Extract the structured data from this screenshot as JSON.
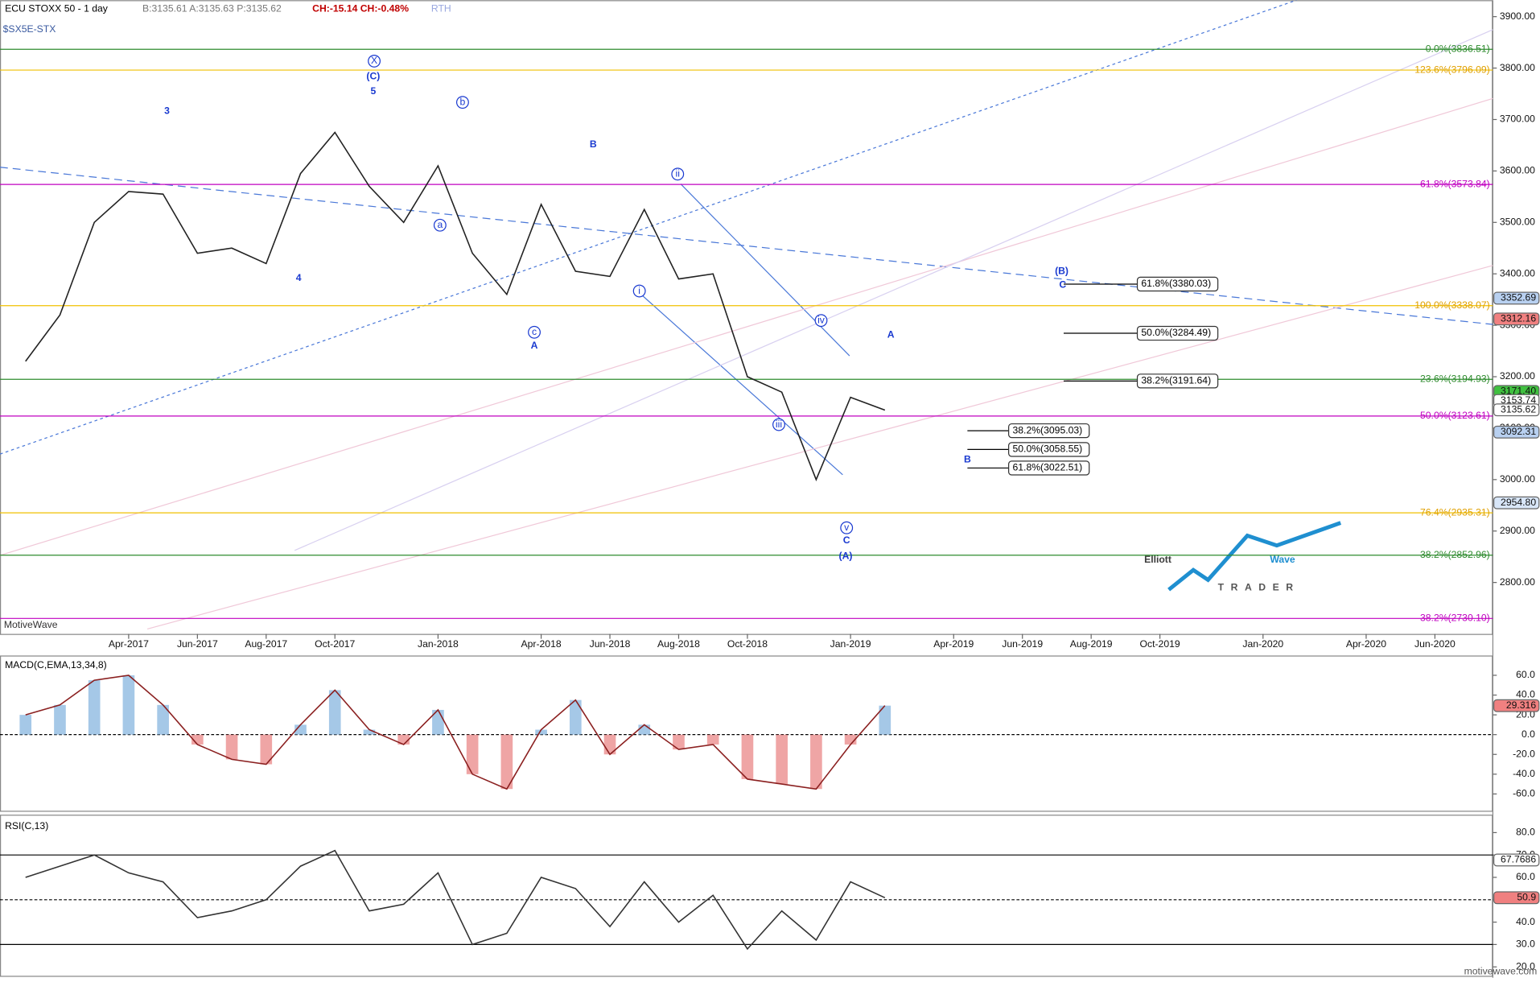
{
  "chart_data": {
    "type": "line",
    "header": {
      "symbol_line": "ECU STOXX 50 - 1 day",
      "quote": "B:3135.61 A:3135.63 P:3135.62",
      "change": "CH:-15.14 CH:-0.48%",
      "session": "RTH",
      "ticker": "$SX5E-STX"
    },
    "watermark": "MotiveWave",
    "footer": "motivewave.com",
    "logo": {
      "word1": "Elliott",
      "word2": "Wave",
      "word3": "TRADER"
    },
    "categories": [
      null,
      null,
      null,
      "Apr-2017",
      null,
      "Jun-2017",
      null,
      "Aug-2017",
      null,
      "Oct-2017",
      null,
      null,
      "Jan-2018",
      null,
      null,
      "Apr-2018",
      null,
      "Jun-2018",
      null,
      "Aug-2018",
      null,
      "Oct-2018",
      null,
      null,
      "Jan-2019",
      null,
      null,
      "Apr-2019",
      null,
      "Jun-2019",
      null,
      "Aug-2019",
      null,
      "Oct-2019",
      null,
      null,
      "Jan-2020",
      null,
      null,
      "Apr-2020",
      null,
      "Jun-2020"
    ],
    "series": [
      {
        "name": "SX5E",
        "color": "#222222",
        "values": [
          3230,
          3320,
          3500,
          3560,
          3555,
          3440,
          3450,
          3420,
          3595,
          3675,
          3570,
          3500,
          3610,
          3440,
          3360,
          3535,
          3405,
          3395,
          3525,
          3390,
          3400,
          3200,
          3170,
          3000,
          3160,
          3135,
          null,
          null,
          null,
          null,
          null,
          null,
          null,
          null,
          null,
          null,
          null,
          null,
          null,
          null,
          null,
          null
        ]
      }
    ],
    "ylim": [
      2700,
      3932
    ],
    "yticks": [
      {
        "value": 2800,
        "label": "2800.00"
      },
      {
        "value": 2900,
        "label": "2900.00"
      },
      {
        "value": 3000,
        "label": "3000.00"
      },
      {
        "value": 3100,
        "label": "3100.00"
      },
      {
        "value": 3200,
        "label": "3200.00"
      },
      {
        "value": 3300,
        "label": "3300.00"
      },
      {
        "value": 3400,
        "label": "3400.00"
      },
      {
        "value": 3500,
        "label": "3500.00"
      },
      {
        "value": 3600,
        "label": "3600.00"
      },
      {
        "value": 3700,
        "label": "3700.00"
      },
      {
        "value": 3800,
        "label": "3800.00"
      },
      {
        "value": 3900,
        "label": "3900.00"
      }
    ],
    "fib_levels": [
      {
        "label": "0.0%(3836.51)",
        "value": 3836.51,
        "color": "#2e8b2e"
      },
      {
        "label": "123.6%(3796.09)",
        "value": 3796.09,
        "color": "#f0c000"
      },
      {
        "label": "61.8%(3573.84)",
        "value": 3573.84,
        "color": "#c000c0"
      },
      {
        "label": "100.0%(3338.07)",
        "value": 3338.07,
        "color": "#f0c000"
      },
      {
        "label": "23.6%(3194.93)",
        "value": 3194.93,
        "color": "#2e8b2e"
      },
      {
        "label": "50.0%(3123.61)",
        "value": 3123.61,
        "color": "#c000c0"
      },
      {
        "label": "76.4%(2935.31)",
        "value": 2935.31,
        "color": "#f0c000"
      },
      {
        "label": "38.2%(2852.96)",
        "value": 2852.96,
        "color": "#2e8b2e"
      },
      {
        "label": "38.2%(2730.10)",
        "value": 2730.1,
        "color": "#c000c0"
      }
    ],
    "projections": [
      {
        "label": "61.8%(3380.03)",
        "value": 3380.03
      },
      {
        "label": "50.0%(3284.49)",
        "value": 3284.49
      },
      {
        "label": "38.2%(3191.64)",
        "value": 3191.64
      },
      {
        "label": "38.2%(3095.03)",
        "value": 3095.03
      },
      {
        "label": "50.0%(3058.55)",
        "value": 3058.55
      },
      {
        "label": "61.8%(3022.51)",
        "value": 3022.51
      }
    ],
    "price_tags": [
      {
        "label": "3352.69",
        "value": 3352.69,
        "color": "#b8d0f0"
      },
      {
        "label": "3312.16",
        "value": 3312.16,
        "color": "#f08080"
      },
      {
        "label": "3171.40",
        "value": 3171.4,
        "color": "#40c040"
      },
      {
        "label": "3153.74",
        "value": 3153.74,
        "color": "#ffffff"
      },
      {
        "label": "3135.62",
        "value": 3135.62,
        "color": "#ffffff"
      },
      {
        "label": "3092.31",
        "value": 3092.31,
        "color": "#b8d0f0"
      },
      {
        "label": "2954.80",
        "value": 2954.8,
        "color": "#d8e6f8"
      }
    ],
    "annotations": [
      "X",
      "(C)",
      "5",
      "3",
      "b",
      "a",
      "4",
      "c",
      "A",
      "B",
      "ii",
      "i",
      "iii",
      "iv",
      "v",
      "C",
      "(A)",
      "A",
      "B",
      "(B)",
      "C"
    ],
    "macd": {
      "title": "MACD(C,EMA,13,34,8)",
      "values": [
        20,
        30,
        55,
        60,
        30,
        -10,
        -25,
        -30,
        10,
        45,
        5,
        -10,
        25,
        -40,
        -55,
        5,
        35,
        -20,
        10,
        -15,
        -10,
        -45,
        -50,
        -55,
        -10,
        29.316
      ],
      "ylim": [
        -78,
        79
      ],
      "yticks": [
        {
          "value": 60,
          "label": "60.0"
        },
        {
          "value": 40,
          "label": "40.0"
        },
        {
          "value": 20,
          "label": "20.0"
        },
        {
          "value": 0,
          "label": "0.0"
        },
        {
          "value": -20,
          "label": "-20.0"
        },
        {
          "value": -40,
          "label": "-40.0"
        },
        {
          "value": -60,
          "label": "-60.0"
        }
      ],
      "tag": {
        "label": "29.316",
        "value": 29.316
      }
    },
    "rsi": {
      "title": "RSI(C,13)",
      "values": [
        60,
        65,
        70,
        62,
        58,
        42,
        45,
        50,
        65,
        72,
        45,
        48,
        62,
        30,
        35,
        60,
        55,
        38,
        58,
        40,
        52,
        28,
        45,
        32,
        58,
        50.9
      ],
      "ylim": [
        16,
        88
      ],
      "yticks": [
        {
          "value": 80,
          "label": "80.0"
        },
        {
          "value": 70,
          "label": "70.0"
        },
        {
          "value": 60,
          "label": "60.0"
        },
        {
          "value": 50,
          "label": "50.0"
        },
        {
          "value": 40,
          "label": "40.0"
        },
        {
          "value": 30,
          "label": "30.0"
        },
        {
          "value": 20,
          "label": "20.0"
        }
      ],
      "tags": [
        {
          "label": "67.7686",
          "value": 67.7686
        },
        {
          "label": "50.9",
          "value": 50.9
        }
      ]
    }
  }
}
